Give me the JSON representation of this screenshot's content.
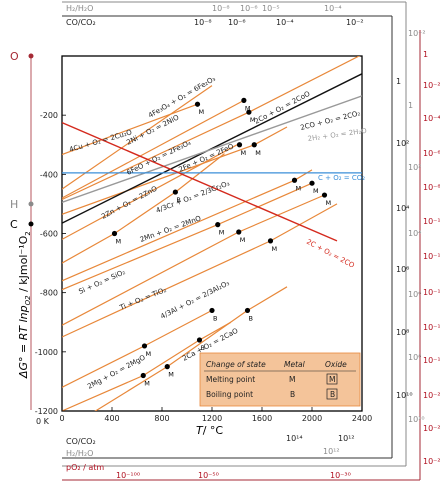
{
  "chart_data": {
    "type": "line",
    "xlabel_main": "T",
    "xlabel_unit": "/ °C",
    "ylabel": "ΔG° = RT lnp",
    "ylabel_sub": "O2",
    "ylabel_unit": " / kJmol⁻¹O",
    "ylabel_unit_sub": "2",
    "xlim": [
      0,
      2400
    ],
    "ylim": [
      -1200,
      0
    ],
    "x_ticks": [
      "0",
      "400",
      "800",
      "1200",
      "1600",
      "2000",
      "2400"
    ],
    "y_ticks": [
      "-200",
      "-400",
      "-600",
      "-800",
      "-1000",
      "-1200"
    ],
    "zero_k_label": "0 K",
    "pole_O": "O",
    "pole_H": "H",
    "pole_C": "C",
    "scales": {
      "top_h2_label": "H₂/H₂O",
      "top_co_label": "CO/CO₂",
      "top_h2_ticks": [
        "10⁻⁸",
        "10⁻⁶",
        "10⁻⁵",
        "10⁻⁴"
      ],
      "top_co_ticks": [
        "10⁻⁸",
        "10⁻⁶",
        "10⁻⁴",
        "10⁻²"
      ],
      "bottom_co_label": "CO/CO₂",
      "bottom_h2_label": "H₂/H₂O",
      "bottom_po2_label": "pO₂ / atm",
      "bottom_co_ticks": [
        "10¹⁴",
        "10¹²"
      ],
      "bottom_h2_ticks": [
        "10¹²"
      ],
      "bottom_po2_ticks": [
        "10⁻¹⁰⁰",
        "10⁻⁵⁰",
        "10⁻³⁰"
      ],
      "right_po2_ticks": [
        "1",
        "10⁻²",
        "10⁻⁴",
        "10⁻⁶",
        "10⁻⁸",
        "10⁻¹⁰",
        "10⁻¹²",
        "10⁻¹⁴",
        "10⁻¹⁶",
        "10⁻¹⁸",
        "10⁻²⁰",
        "10⁻²²",
        "10⁻²⁴"
      ],
      "right_co_ticks": [
        "1",
        "10²",
        "10⁴",
        "10⁶",
        "10⁸",
        "10¹⁰"
      ],
      "right_h2_ticks": [
        "10⁻²",
        "1",
        "10²",
        "10⁴",
        "10⁶",
        "10⁸",
        "10¹⁰"
      ]
    },
    "series": [
      {
        "name": "4Cu + O₂ = 2Cu₂O",
        "points": [
          [
            0,
            -333
          ],
          [
            1084,
            -163
          ]
        ]
      },
      {
        "name": "2Co + O₂ = 2CoO",
        "points": [
          [
            0,
            -485
          ],
          [
            1495,
            -190
          ],
          [
            2400,
            5
          ]
        ]
      },
      {
        "name": "4Fe₃O₄ + O₂ = 6Fe₂O₃",
        "points": [
          [
            0,
            -450
          ],
          [
            1200,
            -100
          ]
        ]
      },
      {
        "name": "2Ni + O₂ = 2NiO",
        "points": [
          [
            0,
            -480
          ],
          [
            1455,
            -150
          ]
        ]
      },
      {
        "name": "6FeO + O₂ = 2Fe₃O₄",
        "points": [
          [
            0,
            -620
          ],
          [
            1400,
            -300
          ]
        ]
      },
      {
        "name": "2Fe + O₂ = 2FeO",
        "points": [
          [
            0,
            -535
          ],
          [
            1538,
            -300
          ],
          [
            1800,
            -240
          ]
        ]
      },
      {
        "name": "2Zn + O₂ = 2ZnO",
        "points": [
          [
            0,
            -700
          ],
          [
            420,
            -600
          ],
          [
            907,
            -460
          ],
          [
            1300,
            -330
          ]
        ]
      },
      {
        "name": "4/3Cr + O₂ = 2/3Cr₂O₃",
        "points": [
          [
            0,
            -760
          ],
          [
            1860,
            -420
          ],
          [
            2000,
            -385
          ]
        ]
      },
      {
        "name": "2Mn + O₂ = 2MnO",
        "points": [
          [
            0,
            -790
          ],
          [
            1246,
            -570
          ],
          [
            2000,
            -430
          ]
        ]
      },
      {
        "name": "Si + O₂ = SiO₂",
        "points": [
          [
            0,
            -910
          ],
          [
            1414,
            -595
          ],
          [
            2100,
            -470
          ]
        ]
      },
      {
        "name": "Ti + O₂ = TiO₂",
        "points": [
          [
            0,
            -950
          ],
          [
            1668,
            -625
          ],
          [
            2200,
            -500
          ]
        ]
      },
      {
        "name": "4/3Al + O₂ = 2/3Al₂O₃",
        "points": [
          [
            0,
            -1120
          ],
          [
            660,
            -980
          ],
          [
            1200,
            -860
          ]
        ]
      },
      {
        "name": "2Mg + O₂ = 2MgO",
        "points": [
          [
            0,
            -1200
          ],
          [
            650,
            -1080
          ],
          [
            1100,
            -960
          ],
          [
            1350,
            -900
          ]
        ]
      },
      {
        "name": "2Ca + O₂ = 2CaO",
        "points": [
          [
            0,
            -1270
          ],
          [
            842,
            -1050
          ],
          [
            1484,
            -860
          ],
          [
            1800,
            -780
          ]
        ]
      },
      {
        "name": "2CO + O₂ = 2CO₂",
        "points": [
          [
            0,
            -565
          ],
          [
            2400,
            -60
          ]
        ]
      },
      {
        "name": "2H₂ + O₂ = 2H₂O",
        "points": [
          [
            0,
            -495
          ],
          [
            2400,
            -135
          ]
        ]
      },
      {
        "name": "C + O₂ = CO₂",
        "points": [
          [
            0,
            -395
          ],
          [
            2400,
            -395
          ]
        ]
      },
      {
        "name": "2C + O₂ = 2CO",
        "points": [
          [
            0,
            -225
          ],
          [
            2200,
            -625
          ]
        ]
      }
    ],
    "markers": [
      {
        "type": "M",
        "x": 1084,
        "y": -163
      },
      {
        "type": "M",
        "x": 1495,
        "y": -190
      },
      {
        "type": "M",
        "x": 1455,
        "y": -150
      },
      {
        "type": "M",
        "x": 1538,
        "y": -300
      },
      {
        "type": "M",
        "x": 1420,
        "y": -300
      },
      {
        "type": "M",
        "x": 420,
        "y": -600
      },
      {
        "type": "B",
        "x": 907,
        "y": -460
      },
      {
        "type": "M",
        "x": 1860,
        "y": -420
      },
      {
        "type": "M",
        "x": 1246,
        "y": -570
      },
      {
        "type": "M",
        "x": 1414,
        "y": -595
      },
      {
        "type": "M",
        "x": 1668,
        "y": -625
      },
      {
        "type": "M",
        "x": 660,
        "y": -980
      },
      {
        "type": "B",
        "x": 1200,
        "y": -860
      },
      {
        "type": "M",
        "x": 650,
        "y": -1080
      },
      {
        "type": "B",
        "x": 1100,
        "y": -960
      },
      {
        "type": "M",
        "x": 842,
        "y": -1050
      },
      {
        "type": "B",
        "x": 1484,
        "y": -860
      },
      {
        "type": "M",
        "x": 2000,
        "y": -430
      },
      {
        "type": "M",
        "x": 2100,
        "y": -470
      }
    ],
    "legend": {
      "headers": [
        "Change of state",
        "Metal",
        "Oxide"
      ],
      "rows": [
        {
          "label": "Melting point",
          "metal": "M",
          "oxide": "M"
        },
        {
          "label": "Boiling point",
          "metal": "B",
          "oxide": "B"
        }
      ]
    },
    "colors": {
      "metal_lines": "#e8883a",
      "co_line": "#111111",
      "h2_line": "#999999",
      "c_co2_line": "#3b8fd9",
      "c_co_line": "#d42a1e",
      "po2_scale": "#a52a35",
      "legend_bg": "#f4c49a"
    }
  }
}
